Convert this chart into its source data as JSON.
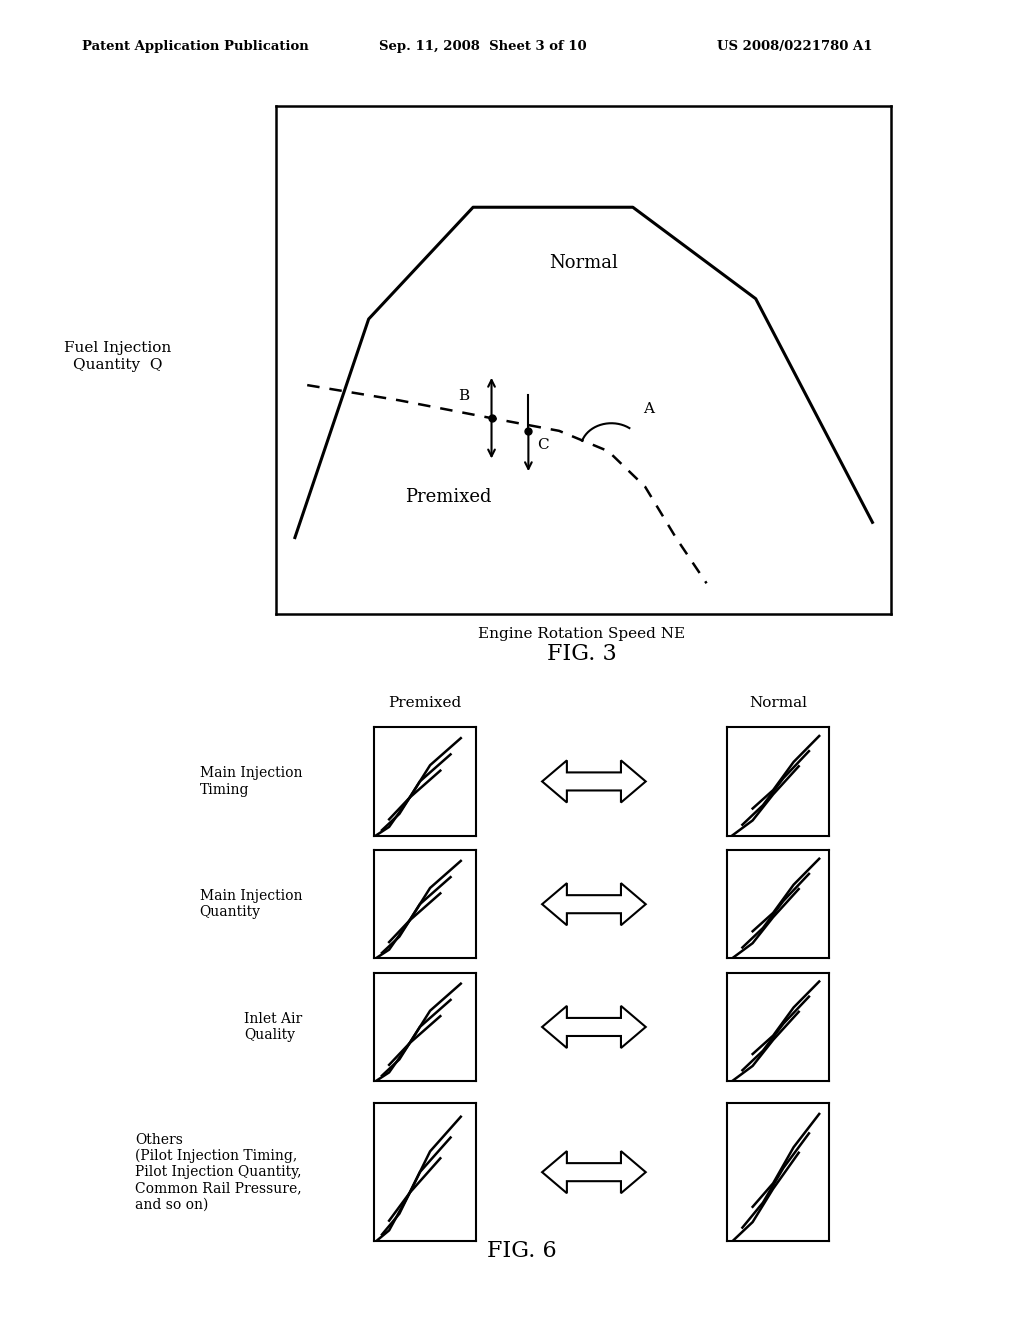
{
  "bg_color": "#ffffff",
  "header_text": "Patent Application Publication",
  "header_date": "Sep. 11, 2008  Sheet 3 of 10",
  "header_patent": "US 2008/0221780 A1",
  "fig3_title": "FIG. 3",
  "fig6_title": "FIG. 6",
  "fig3_xlabel": "Engine Rotation Speed NE",
  "fig3_ylabel": "Fuel Injection\nQuantity  Q",
  "fig3_label_normal": "Normal",
  "fig3_label_premixed": "Premixed",
  "fig3_label_A": "A",
  "fig3_label_B": "B",
  "fig3_label_C": "C",
  "fig6_col_premixed": "Premixed",
  "fig6_col_normal": "Normal",
  "fig6_rows": [
    {
      "label": "Main Injection\nTiming"
    },
    {
      "label": "Main Injection\nQuantity"
    },
    {
      "label": "Inlet Air\nQuality"
    },
    {
      "label": "Others\n(Pilot Injection Timing,\nPilot Injection Quantity,\nCommon Rail Pressure,\nand so on)"
    }
  ]
}
